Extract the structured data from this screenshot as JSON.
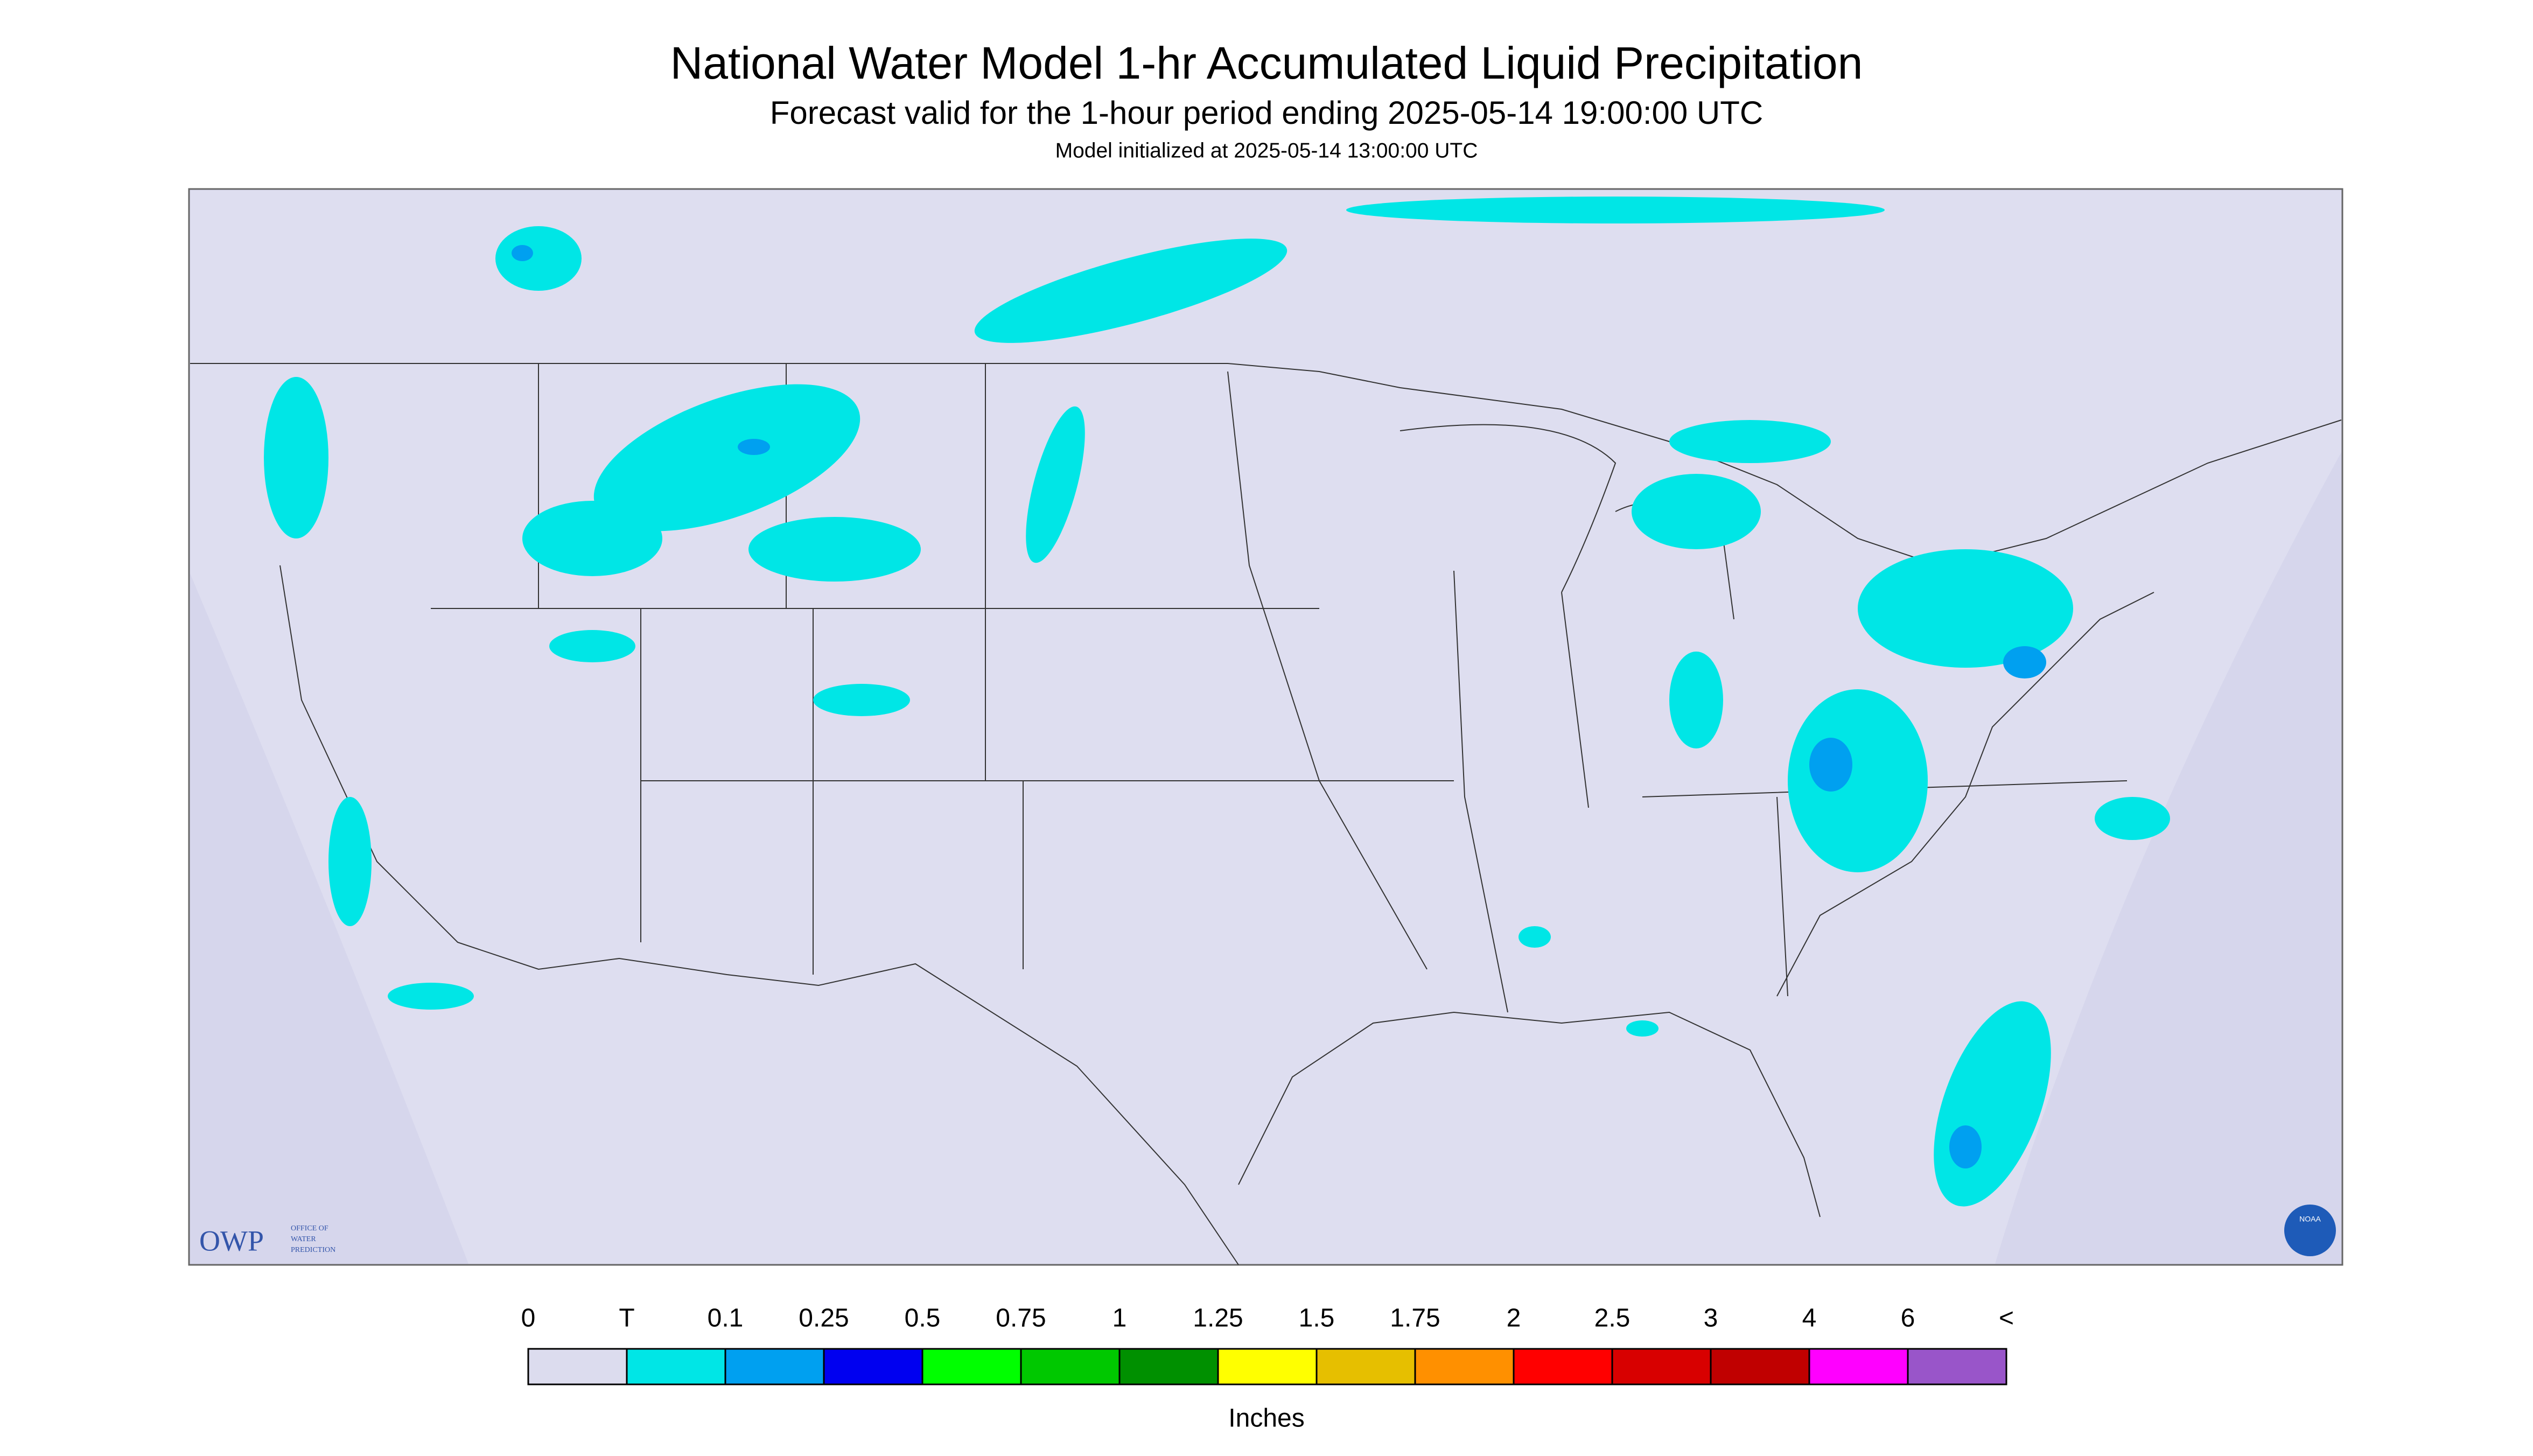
{
  "title": "National Water Model 1-hr Accumulated Liquid Precipitation",
  "subtitle": "Forecast valid for the 1-hour period ending 2025-05-14 19:00:00 UTC",
  "init": "Model initialized at 2025-05-14 13:00:00 UTC",
  "legend": {
    "labels": [
      "0",
      "T",
      "0.1",
      "0.25",
      "0.5",
      "0.75",
      "1",
      "1.25",
      "1.5",
      "1.75",
      "2",
      "2.5",
      "3",
      "4",
      "6",
      "<"
    ],
    "colors": [
      "#dcdcee",
      "#00e6e6",
      "#00a0f0",
      "#0000f0",
      "#00ff00",
      "#00c800",
      "#009000",
      "#ffff00",
      "#e6bf00",
      "#ff9000",
      "#ff0000",
      "#d80000",
      "#c00000",
      "#ff00ff",
      "#9955c9"
    ],
    "units": "Inches"
  },
  "logo": {
    "owp": "OWP",
    "lines": [
      "OFFICE OF",
      "WATER",
      "PREDICTION"
    ],
    "noaa": "NOAA"
  }
}
